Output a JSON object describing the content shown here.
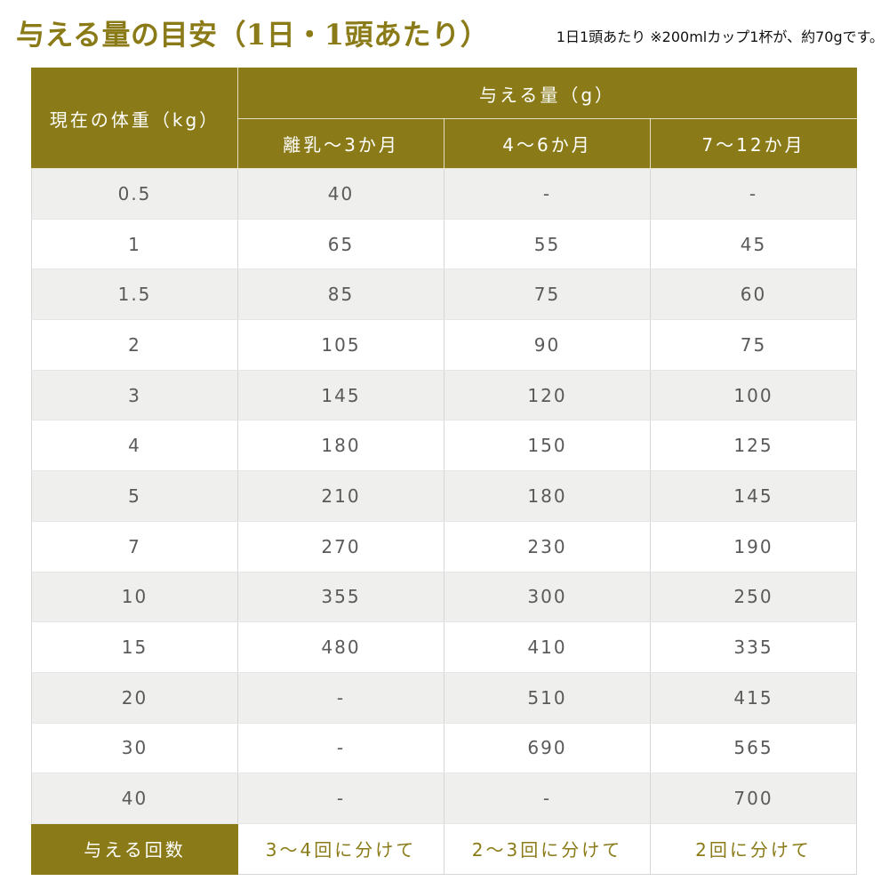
{
  "title": "与える量の目安（1日・1頭あたり）",
  "note": "1日1頭あたり ※200mlカップ1杯が、約70gです。",
  "colors": {
    "accent": "#8b7b18",
    "row_alt": "#efefee",
    "text": "#5a5a5a"
  },
  "table": {
    "weight_header": "現在の体重（kg）",
    "amount_header": "与える量（g）",
    "age_headers": [
      "離乳〜3か月",
      "4〜6か月",
      "7〜12か月"
    ],
    "rows": [
      {
        "weight": "0.5",
        "values": [
          "40",
          "-",
          "-"
        ]
      },
      {
        "weight": "1",
        "values": [
          "65",
          "55",
          "45"
        ]
      },
      {
        "weight": "1.5",
        "values": [
          "85",
          "75",
          "60"
        ]
      },
      {
        "weight": "2",
        "values": [
          "105",
          "90",
          "75"
        ]
      },
      {
        "weight": "3",
        "values": [
          "145",
          "120",
          "100"
        ]
      },
      {
        "weight": "4",
        "values": [
          "180",
          "150",
          "125"
        ]
      },
      {
        "weight": "5",
        "values": [
          "210",
          "180",
          "145"
        ]
      },
      {
        "weight": "7",
        "values": [
          "270",
          "230",
          "190"
        ]
      },
      {
        "weight": "10",
        "values": [
          "355",
          "300",
          "250"
        ]
      },
      {
        "weight": "15",
        "values": [
          "480",
          "410",
          "335"
        ]
      },
      {
        "weight": "20",
        "values": [
          "-",
          "510",
          "415"
        ]
      },
      {
        "weight": "30",
        "values": [
          "-",
          "690",
          "565"
        ]
      },
      {
        "weight": "40",
        "values": [
          "-",
          "-",
          "700"
        ]
      }
    ],
    "frequency": {
      "label": "与える回数",
      "values": [
        "3〜4回に分けて",
        "2〜3回に分けて",
        "2回に分けて"
      ]
    }
  }
}
